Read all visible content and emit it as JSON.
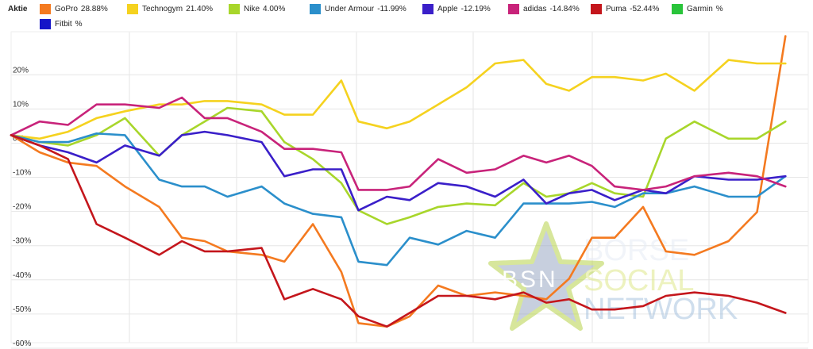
{
  "legend": {
    "title": "Aktie",
    "items": [
      {
        "label": "GoPro",
        "value": "28.88%",
        "color": "#f47a20"
      },
      {
        "label": "Technogym",
        "value": "21.40%",
        "color": "#f5d21f"
      },
      {
        "label": "Nike",
        "value": "4.00%",
        "color": "#a8d62b"
      },
      {
        "label": "Under Armour",
        "value": "-11.99%",
        "color": "#2b8fcb"
      },
      {
        "label": "Apple",
        "value": "-12.19%",
        "color": "#3a1fc9"
      },
      {
        "label": "adidas",
        "value": "-14.84%",
        "color": "#c8237a"
      },
      {
        "label": "Puma",
        "value": "-52.44%",
        "color": "#c4161c"
      },
      {
        "label": "Garmin",
        "value": "%",
        "color": "#29c43a"
      },
      {
        "label": "Fitbit",
        "value": "%",
        "color": "#1515c8"
      }
    ]
  },
  "watermark": {
    "badge": "BSN",
    "line1": "BÖRSE",
    "line2": "SOCIAL",
    "line3": "NETWORK"
  },
  "chart_data": {
    "type": "line",
    "x": [
      0,
      1,
      2,
      3,
      4,
      5,
      6,
      7,
      8,
      9,
      10,
      11,
      12,
      13,
      14,
      15,
      16,
      17,
      18,
      19,
      20,
      21,
      22,
      23,
      24,
      25,
      26,
      27,
      28,
      29,
      30,
      31,
      32,
      33,
      34,
      35,
      36,
      37,
      38,
      39,
      40,
      41,
      42,
      43,
      44,
      45,
      46,
      47,
      48,
      49,
      50,
      51,
      52,
      53,
      54,
      55,
      56,
      57,
      58,
      59,
      60,
      61,
      62,
      63,
      64,
      65,
      66,
      67,
      68,
      69,
      70
    ],
    "ylim": [
      -60,
      30
    ],
    "y_ticks": [
      20,
      10,
      0,
      -10,
      -20,
      -30,
      -40,
      -50,
      -60
    ],
    "y_tick_labels": [
      "20%",
      "10%",
      "0%",
      "-10%",
      "-20%",
      "-30%",
      "-40%",
      "-50%",
      "-60%"
    ],
    "grid": true,
    "series": [
      {
        "name": "GoPro",
        "color": "#f47a20",
        "points": [
          [
            0,
            0
          ],
          [
            2.5,
            -5
          ],
          [
            5,
            -8
          ],
          [
            7.5,
            -9
          ],
          [
            10,
            -15
          ],
          [
            13,
            -21
          ],
          [
            15,
            -30
          ],
          [
            17,
            -31
          ],
          [
            19,
            -34
          ],
          [
            22,
            -35
          ],
          [
            24,
            -37
          ],
          [
            26.5,
            -26
          ],
          [
            29,
            -40
          ],
          [
            30.5,
            -55
          ],
          [
            33,
            -56
          ],
          [
            35,
            -53
          ],
          [
            37.5,
            -44
          ],
          [
            40,
            -47
          ],
          [
            42.5,
            -46
          ],
          [
            45,
            -47
          ],
          [
            47,
            -48
          ],
          [
            49,
            -42
          ],
          [
            51,
            -30
          ],
          [
            53,
            -30
          ],
          [
            55.5,
            -21
          ],
          [
            57.5,
            -34
          ],
          [
            60,
            -35
          ],
          [
            63,
            -31
          ],
          [
            65.5,
            -22.5
          ],
          [
            68,
            29
          ]
        ]
      },
      {
        "name": "Technogym",
        "color": "#f5d21f",
        "points": [
          [
            0,
            0
          ],
          [
            2.5,
            -1
          ],
          [
            5,
            1
          ],
          [
            7.5,
            5
          ],
          [
            10,
            7
          ],
          [
            13,
            9
          ],
          [
            15,
            9
          ],
          [
            17,
            10
          ],
          [
            19,
            10
          ],
          [
            22,
            9
          ],
          [
            24,
            6
          ],
          [
            26.5,
            6
          ],
          [
            29,
            16
          ],
          [
            30.5,
            4
          ],
          [
            33,
            2
          ],
          [
            35,
            4
          ],
          [
            37.5,
            9
          ],
          [
            40,
            14
          ],
          [
            42.5,
            21
          ],
          [
            45,
            22
          ],
          [
            47,
            15
          ],
          [
            49,
            13
          ],
          [
            51,
            17
          ],
          [
            53,
            17
          ],
          [
            55.5,
            16
          ],
          [
            57.5,
            18
          ],
          [
            60,
            13
          ],
          [
            63,
            22
          ],
          [
            65.5,
            21
          ],
          [
            68,
            21
          ]
        ]
      },
      {
        "name": "Nike",
        "color": "#a8d62b",
        "points": [
          [
            0,
            0
          ],
          [
            2.5,
            -2
          ],
          [
            5,
            -3
          ],
          [
            7.5,
            0
          ],
          [
            10,
            5
          ],
          [
            13,
            -6
          ],
          [
            15,
            0
          ],
          [
            17,
            4
          ],
          [
            19,
            8
          ],
          [
            22,
            7
          ],
          [
            24,
            -2
          ],
          [
            26.5,
            -7
          ],
          [
            29,
            -14
          ],
          [
            30.5,
            -22
          ],
          [
            33,
            -26
          ],
          [
            35,
            -24
          ],
          [
            37.5,
            -21
          ],
          [
            40,
            -20
          ],
          [
            42.5,
            -20.5
          ],
          [
            45,
            -14
          ],
          [
            47,
            -18
          ],
          [
            49,
            -17
          ],
          [
            51,
            -14
          ],
          [
            53,
            -17
          ],
          [
            55.5,
            -18
          ],
          [
            57.5,
            -1
          ],
          [
            60,
            4
          ],
          [
            63,
            -1
          ],
          [
            65.5,
            -1
          ],
          [
            68,
            4
          ]
        ]
      },
      {
        "name": "Under Armour",
        "color": "#2b8fcb",
        "points": [
          [
            0,
            0
          ],
          [
            2.5,
            -2
          ],
          [
            5,
            -2
          ],
          [
            7.5,
            0.5
          ],
          [
            10,
            0
          ],
          [
            13,
            -13
          ],
          [
            15,
            -15
          ],
          [
            17,
            -15
          ],
          [
            19,
            -18
          ],
          [
            22,
            -15
          ],
          [
            24,
            -20
          ],
          [
            26.5,
            -23
          ],
          [
            29,
            -24
          ],
          [
            30.5,
            -37
          ],
          [
            33,
            -38
          ],
          [
            35,
            -30
          ],
          [
            37.5,
            -32
          ],
          [
            40,
            -28
          ],
          [
            42.5,
            -30
          ],
          [
            45,
            -20
          ],
          [
            47,
            -20
          ],
          [
            49,
            -20
          ],
          [
            51,
            -19.5
          ],
          [
            53,
            -21
          ],
          [
            55.5,
            -17
          ],
          [
            57.5,
            -17
          ],
          [
            60,
            -15
          ],
          [
            63,
            -18
          ],
          [
            65.5,
            -18
          ],
          [
            68,
            -12
          ]
        ]
      },
      {
        "name": "Apple",
        "color": "#3a1fc9",
        "points": [
          [
            0,
            0
          ],
          [
            2.5,
            -3
          ],
          [
            5,
            -5
          ],
          [
            7.5,
            -8
          ],
          [
            10,
            -3
          ],
          [
            13,
            -6
          ],
          [
            15,
            0
          ],
          [
            17,
            1
          ],
          [
            19,
            0
          ],
          [
            22,
            -2
          ],
          [
            24,
            -12
          ],
          [
            26.5,
            -10
          ],
          [
            29,
            -10
          ],
          [
            30.5,
            -22
          ],
          [
            33,
            -18
          ],
          [
            35,
            -19
          ],
          [
            37.5,
            -14
          ],
          [
            40,
            -15
          ],
          [
            42.5,
            -18
          ],
          [
            45,
            -13
          ],
          [
            47,
            -20
          ],
          [
            49,
            -17
          ],
          [
            51,
            -16
          ],
          [
            53,
            -19
          ],
          [
            55.5,
            -16
          ],
          [
            57.5,
            -17
          ],
          [
            60,
            -12
          ],
          [
            63,
            -13
          ],
          [
            65.5,
            -13
          ],
          [
            68,
            -12
          ]
        ]
      },
      {
        "name": "adidas",
        "color": "#c8237a",
        "points": [
          [
            0,
            0
          ],
          [
            2.5,
            4
          ],
          [
            5,
            3
          ],
          [
            7.5,
            9
          ],
          [
            10,
            9
          ],
          [
            13,
            8
          ],
          [
            15,
            11
          ],
          [
            17,
            5
          ],
          [
            19,
            5
          ],
          [
            22,
            1
          ],
          [
            24,
            -4
          ],
          [
            26.5,
            -4
          ],
          [
            29,
            -5
          ],
          [
            30.5,
            -16
          ],
          [
            33,
            -16
          ],
          [
            35,
            -15
          ],
          [
            37.5,
            -7
          ],
          [
            40,
            -11
          ],
          [
            42.5,
            -10
          ],
          [
            45,
            -6
          ],
          [
            47,
            -8
          ],
          [
            49,
            -6
          ],
          [
            51,
            -9
          ],
          [
            53,
            -15
          ],
          [
            55.5,
            -16
          ],
          [
            57.5,
            -15
          ],
          [
            60,
            -12
          ],
          [
            63,
            -11
          ],
          [
            65.5,
            -12
          ],
          [
            68,
            -15
          ]
        ]
      },
      {
        "name": "Puma",
        "color": "#c4161c",
        "points": [
          [
            0,
            0
          ],
          [
            2.5,
            -3
          ],
          [
            5,
            -7
          ],
          [
            7.5,
            -26
          ],
          [
            10,
            -30
          ],
          [
            13,
            -35
          ],
          [
            15,
            -31
          ],
          [
            17,
            -34
          ],
          [
            19,
            -34
          ],
          [
            22,
            -33
          ],
          [
            24,
            -48
          ],
          [
            26.5,
            -45
          ],
          [
            29,
            -48
          ],
          [
            30.5,
            -53
          ],
          [
            33,
            -56
          ],
          [
            35,
            -52
          ],
          [
            37.5,
            -47
          ],
          [
            40,
            -47
          ],
          [
            42.5,
            -48
          ],
          [
            45,
            -46
          ],
          [
            47,
            -49
          ],
          [
            49,
            -48
          ],
          [
            51,
            -51
          ],
          [
            53,
            -51
          ],
          [
            55.5,
            -50
          ],
          [
            57.5,
            -47
          ],
          [
            60,
            -46
          ],
          [
            63,
            -47
          ],
          [
            65.5,
            -49
          ],
          [
            68,
            -52
          ]
        ]
      }
    ]
  }
}
